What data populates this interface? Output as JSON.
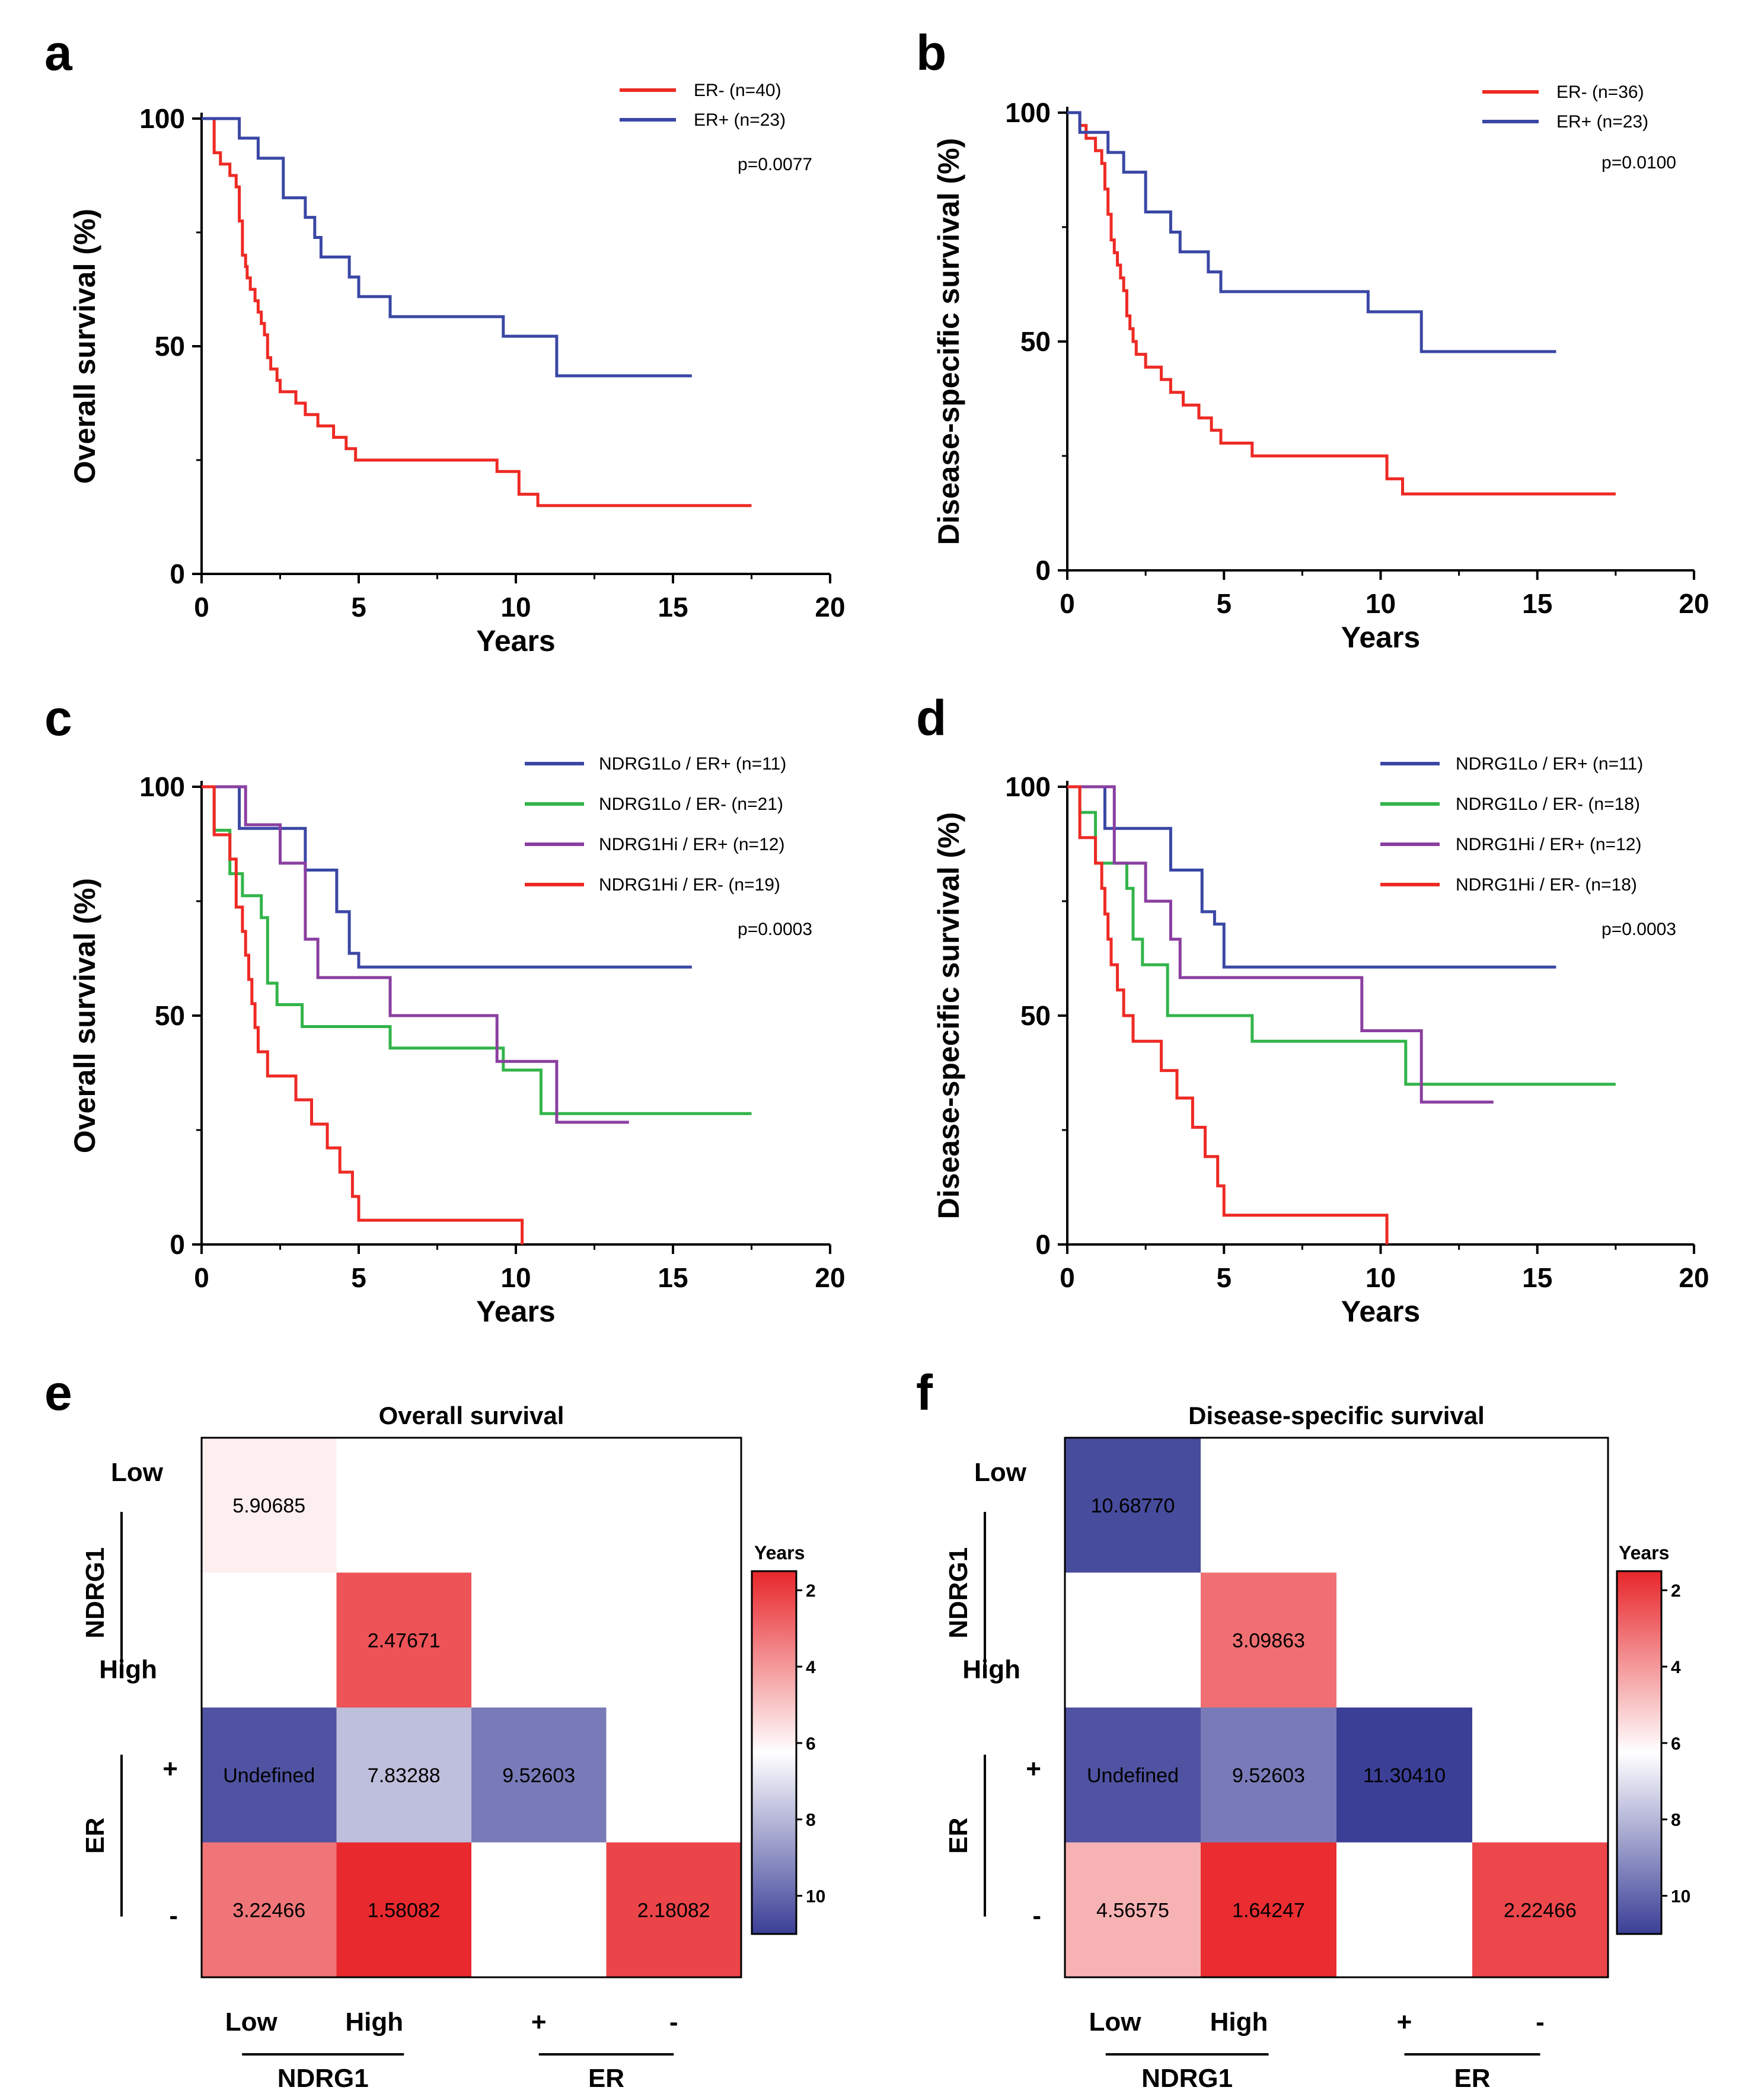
{
  "chart_data": [
    {
      "id": "a",
      "type": "line",
      "step": true,
      "panel_label": "a",
      "title": "",
      "xlabel": "Years",
      "ylabel": "Overall survival (%)",
      "xlim": [
        0,
        20
      ],
      "ylim": [
        0,
        100
      ],
      "xticks": [
        "0",
        "5",
        "10",
        "15",
        "20"
      ],
      "yticks": [
        "0",
        "50",
        "100"
      ],
      "p_value": "p=0.0077",
      "series": [
        {
          "name": "ER- (n=40)",
          "color": "#ee2a24",
          "times": [
            0.4,
            0.6,
            0.9,
            1.1,
            1.2,
            1.3,
            1.4,
            1.45,
            1.55,
            1.7,
            1.8,
            1.9,
            2.0,
            2.1,
            2.2,
            2.4,
            2.5,
            3.0,
            3.3,
            3.7,
            4.2,
            4.6,
            4.9,
            5.9,
            9.4,
            10.1,
            10.7
          ],
          "survival": [
            92.5,
            90,
            87.5,
            85,
            77.5,
            70,
            67.5,
            65,
            62.5,
            60,
            57.5,
            55,
            52.5,
            47.5,
            45,
            42.5,
            40,
            37.5,
            35,
            32.5,
            30,
            27.5,
            25,
            25,
            22.5,
            17.5,
            15
          ],
          "end": 17.5
        },
        {
          "name": "ER+ (n=23)",
          "color": "#3a47a5",
          "times": [
            1.2,
            1.8,
            2.6,
            3.3,
            3.6,
            3.8,
            4.7,
            5.0,
            6.0,
            9.6,
            11.3
          ],
          "survival": [
            95.7,
            91.3,
            82.6,
            78.3,
            73.9,
            69.6,
            65.2,
            60.9,
            56.5,
            52.2,
            43.5
          ],
          "end": 15.6
        }
      ]
    },
    {
      "id": "b",
      "type": "line",
      "step": true,
      "panel_label": "b",
      "title": "",
      "xlabel": "Years",
      "ylabel": "Disease-specific survival (%)",
      "xlim": [
        0,
        20
      ],
      "ylim": [
        0,
        100
      ],
      "xticks": [
        "0",
        "5",
        "10",
        "15",
        "20"
      ],
      "yticks": [
        "0",
        "50",
        "100"
      ],
      "p_value": "p=0.0100",
      "series": [
        {
          "name": "ER- (n=36)",
          "color": "#ee2a24",
          "times": [
            0.4,
            0.6,
            0.9,
            1.1,
            1.2,
            1.3,
            1.4,
            1.5,
            1.6,
            1.7,
            1.8,
            1.9,
            2.0,
            2.1,
            2.2,
            2.5,
            3.0,
            3.3,
            3.7,
            4.2,
            4.6,
            4.9,
            5.9,
            10.2,
            10.7
          ],
          "survival": [
            97.2,
            94.4,
            91.7,
            88.9,
            83.3,
            77.8,
            72.2,
            69.4,
            66.7,
            63.9,
            61.1,
            55.6,
            52.8,
            50.0,
            47.2,
            44.4,
            41.7,
            38.9,
            36.1,
            33.3,
            30.6,
            27.8,
            25.0,
            20.0,
            16.7
          ],
          "end": 17.5
        },
        {
          "name": "ER+ (n=23)",
          "color": "#3a47a5",
          "times": [
            0.4,
            1.3,
            1.8,
            2.5,
            3.3,
            3.6,
            4.5,
            4.9,
            9.6,
            11.3
          ],
          "survival": [
            95.7,
            91.3,
            87.0,
            78.3,
            73.9,
            69.6,
            65.2,
            60.9,
            56.5,
            47.8
          ],
          "end": 15.6
        }
      ]
    },
    {
      "id": "c",
      "type": "line",
      "step": true,
      "panel_label": "c",
      "title": "",
      "xlabel": "Years",
      "ylabel": "Overall survival (%)",
      "xlim": [
        0,
        20
      ],
      "ylim": [
        0,
        100
      ],
      "xticks": [
        "0",
        "5",
        "10",
        "15",
        "20"
      ],
      "yticks": [
        "0",
        "50",
        "100"
      ],
      "p_value": "p=0.0003",
      "series": [
        {
          "name": "NDRG1Lo / ER+ (n=11)",
          "color": "#3a47a5",
          "times": [
            1.2,
            3.3,
            4.3,
            4.7,
            5.0
          ],
          "survival": [
            90.9,
            81.8,
            72.7,
            63.6,
            60.6
          ],
          "end": 15.6
        },
        {
          "name": "NDRG1Lo / ER- (n=21)",
          "color": "#33b44a",
          "times": [
            0.4,
            0.9,
            1.3,
            1.9,
            2.1,
            2.4,
            3.2,
            6.0,
            9.6,
            10.8
          ],
          "survival": [
            90.5,
            81.0,
            76.2,
            71.4,
            57.1,
            52.4,
            47.6,
            42.9,
            38.1,
            28.6
          ],
          "end": 17.5
        },
        {
          "name": "NDRG1Hi / ER+ (n=12)",
          "color": "#8a3fa0",
          "times": [
            1.4,
            2.5,
            3.3,
            3.7,
            6.0,
            9.4,
            11.3
          ],
          "survival": [
            91.7,
            83.3,
            66.7,
            58.3,
            50.0,
            40.0,
            26.7
          ],
          "end": 13.6
        },
        {
          "name": "NDRG1Hi / ER- (n=19)",
          "color": "#ee2a24",
          "times": [
            0.4,
            0.9,
            1.1,
            1.3,
            1.4,
            1.5,
            1.6,
            1.7,
            1.8,
            2.1,
            3.0,
            3.5,
            4.0,
            4.4,
            4.8,
            5.0,
            10.2
          ],
          "survival": [
            89.5,
            84.2,
            73.7,
            68.4,
            63.2,
            57.9,
            52.6,
            47.4,
            42.1,
            36.8,
            31.6,
            26.3,
            21.1,
            15.8,
            10.5,
            5.3,
            0
          ],
          "end": 10.2
        }
      ]
    },
    {
      "id": "d",
      "type": "line",
      "step": true,
      "panel_label": "d",
      "title": "",
      "xlabel": "Years",
      "ylabel": "Disease-specific survival (%)",
      "xlim": [
        0,
        20
      ],
      "ylim": [
        0,
        100
      ],
      "xticks": [
        "0",
        "5",
        "10",
        "15",
        "20"
      ],
      "yticks": [
        "0",
        "50",
        "100"
      ],
      "p_value": "p=0.0003",
      "series": [
        {
          "name": "NDRG1Lo / ER+ (n=11)",
          "color": "#3a47a5",
          "times": [
            1.2,
            3.3,
            4.3,
            4.7,
            5.0
          ],
          "survival": [
            90.9,
            81.8,
            72.7,
            70.0,
            60.6
          ],
          "end": 15.6
        },
        {
          "name": "NDRG1Lo / ER- (n=18)",
          "color": "#33b44a",
          "times": [
            0.4,
            0.9,
            1.9,
            2.1,
            2.4,
            3.2,
            5.9,
            10.8
          ],
          "survival": [
            94.4,
            83.3,
            77.8,
            66.7,
            61.1,
            50.0,
            44.4,
            35.0
          ],
          "end": 17.5
        },
        {
          "name": "NDRG1Hi / ER+ (n=12)",
          "color": "#8a3fa0",
          "times": [
            1.5,
            2.5,
            3.3,
            3.6,
            9.4,
            11.3
          ],
          "survival": [
            83.3,
            75.0,
            66.7,
            58.3,
            46.7,
            31.1
          ],
          "end": 13.6
        },
        {
          "name": "NDRG1Hi / ER- (n=18)",
          "color": "#ee2a24",
          "times": [
            0.4,
            0.9,
            1.1,
            1.2,
            1.3,
            1.4,
            1.6,
            1.8,
            2.1,
            3.0,
            3.5,
            4.0,
            4.4,
            4.8,
            5.0,
            10.2
          ],
          "survival": [
            88.9,
            83.3,
            77.8,
            72.2,
            66.7,
            61.1,
            55.6,
            50.0,
            44.4,
            38.0,
            32.0,
            25.6,
            19.2,
            12.8,
            6.4,
            0
          ],
          "end": 10.2
        }
      ]
    },
    {
      "id": "e",
      "type": "heatmap",
      "panel_label": "e",
      "title": "Overall survival",
      "row_groups": [
        {
          "name": "NDRG1",
          "rows": [
            "Low",
            "High"
          ]
        },
        {
          "name": "ER",
          "rows": [
            "+",
            "-"
          ]
        }
      ],
      "col_groups": [
        {
          "name": "NDRG1",
          "cols": [
            "Low",
            "High"
          ]
        },
        {
          "name": "ER",
          "cols": [
            "+",
            "-"
          ]
        }
      ],
      "cells": [
        {
          "row": 0,
          "col": 0,
          "label": "5.90685",
          "value": 5.90685
        },
        {
          "row": 1,
          "col": 1,
          "label": "2.47671",
          "value": 2.47671
        },
        {
          "row": 2,
          "col": 0,
          "label": "Undefined",
          "value": 10.5
        },
        {
          "row": 2,
          "col": 1,
          "label": "7.83288",
          "value": 7.83288
        },
        {
          "row": 2,
          "col": 2,
          "label": "9.52603",
          "value": 9.52603
        },
        {
          "row": 3,
          "col": 0,
          "label": "3.22466",
          "value": 3.22466
        },
        {
          "row": 3,
          "col": 1,
          "label": "1.58082",
          "value": 1.58082
        },
        {
          "row": 3,
          "col": 3,
          "label": "2.18082",
          "value": 2.18082
        }
      ],
      "colorbar": {
        "title": "Years",
        "ticks": [
          "2",
          "4",
          "6",
          "8",
          "10"
        ],
        "range": [
          1.5,
          11
        ]
      }
    },
    {
      "id": "f",
      "type": "heatmap",
      "panel_label": "f",
      "title": "Disease-specific survival",
      "row_groups": [
        {
          "name": "NDRG1",
          "rows": [
            "Low",
            "High"
          ]
        },
        {
          "name": "ER",
          "rows": [
            "+",
            "-"
          ]
        }
      ],
      "col_groups": [
        {
          "name": "NDRG1",
          "cols": [
            "Low",
            "High"
          ]
        },
        {
          "name": "ER",
          "cols": [
            "+",
            "-"
          ]
        }
      ],
      "cells": [
        {
          "row": 0,
          "col": 0,
          "label": "10.68770",
          "value": 10.6877
        },
        {
          "row": 1,
          "col": 1,
          "label": "3.09863",
          "value": 3.09863
        },
        {
          "row": 2,
          "col": 0,
          "label": "Undefined",
          "value": 10.5
        },
        {
          "row": 2,
          "col": 1,
          "label": "9.52603",
          "value": 9.52603
        },
        {
          "row": 2,
          "col": 2,
          "label": "11.30410",
          "value": 11.3041
        },
        {
          "row": 3,
          "col": 0,
          "label": "4.56575",
          "value": 4.56575
        },
        {
          "row": 3,
          "col": 1,
          "label": "1.64247",
          "value": 1.64247
        },
        {
          "row": 3,
          "col": 3,
          "label": "2.22466",
          "value": 2.22466
        }
      ],
      "colorbar": {
        "title": "Years",
        "ticks": [
          "2",
          "4",
          "6",
          "8",
          "10"
        ],
        "range": [
          1.5,
          11
        ]
      }
    }
  ],
  "colors": {
    "heat_low": "#e8262b",
    "heat_mid": "#ffffff",
    "heat_high": "#3b3f96"
  }
}
